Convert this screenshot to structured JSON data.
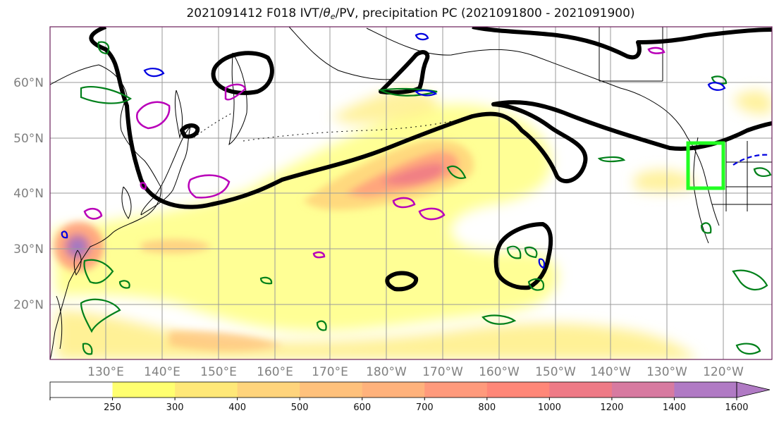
{
  "title": {
    "prefix": "2021091412 F018 IVT/",
    "theta": "θ",
    "theta_sub": "e",
    "suffix": "/PV, precipitation PC (2021091800 - 2021091900)"
  },
  "map": {
    "lat_labels": [
      "60°N",
      "50°N",
      "40°N",
      "30°N",
      "20°N"
    ],
    "lon_labels": [
      "130°E",
      "140°E",
      "150°E",
      "160°E",
      "170°E",
      "180°W",
      "170°W",
      "160°W",
      "150°W",
      "140°W",
      "130°W",
      "120°W"
    ],
    "colors": {
      "frame": "#6b1f5a",
      "grid": "#9a9a9a",
      "land": "#000000",
      "pv_contour": "#000000",
      "theta_contour": "#b900b9",
      "green_contour": "#00801a",
      "blue_contour": "#0000e0",
      "target_box": "#22ff22"
    }
  },
  "colorbar": {
    "ticks": [
      "250",
      "300",
      "400",
      "500",
      "600",
      "700",
      "800",
      "1000",
      "1200",
      "1400",
      "1600"
    ],
    "colors": [
      "#ffffff",
      "#ffff70",
      "#ffe878",
      "#ffd47c",
      "#ffc17c",
      "#ffb27c",
      "#ff9a7c",
      "#ff8778",
      "#ee7a86",
      "#d77aa0",
      "#b07ac4"
    ]
  }
}
